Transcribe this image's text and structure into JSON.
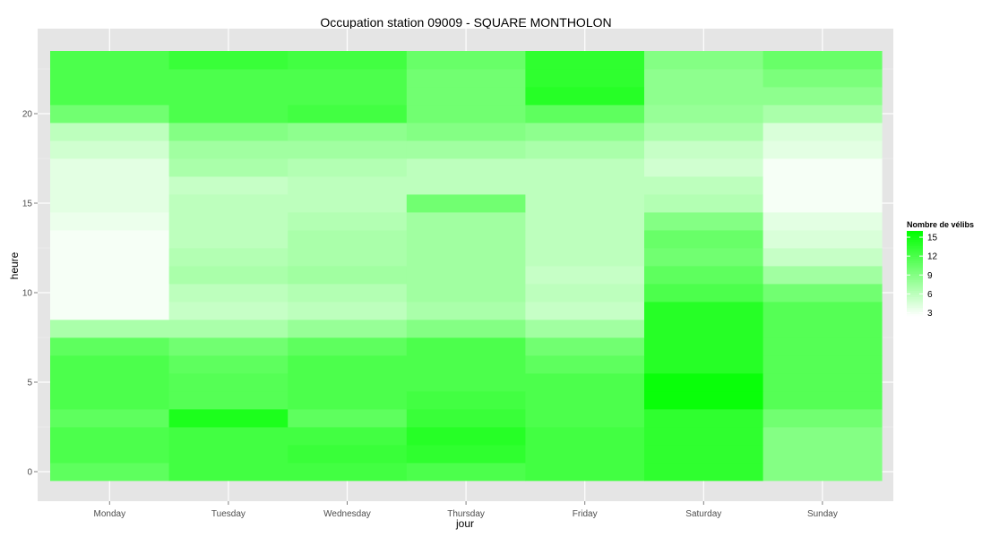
{
  "chart_data": {
    "type": "heatmap",
    "title": "Occupation station 09009 - SQUARE MONTHOLON",
    "xlabel": "jour",
    "ylabel": "heure",
    "x_categories": [
      "Monday",
      "Tuesday",
      "Wednesday",
      "Thursday",
      "Friday",
      "Saturday",
      "Sunday"
    ],
    "y_values": [
      0,
      1,
      2,
      3,
      4,
      5,
      6,
      7,
      8,
      9,
      10,
      11,
      12,
      13,
      14,
      15,
      16,
      17,
      18,
      19,
      20,
      21,
      22,
      23
    ],
    "y_ticks": [
      0,
      5,
      10,
      15,
      20
    ],
    "ylim": [
      -0.5,
      23.5
    ],
    "grid": true,
    "legend_title": "Nombre de vélibs",
    "legend_ticks": [
      3,
      6,
      9,
      12,
      15
    ],
    "legend_position": "right",
    "color_scale": {
      "low_color": "#ffffff",
      "high_color": "#00ff00",
      "min": 2.5,
      "max": 16
    },
    "values": [
      [
        11,
        12.5,
        12.5,
        12,
        12.5,
        13.5,
        9
      ],
      [
        12,
        12.5,
        13,
        13.5,
        12.5,
        13.5,
        9
      ],
      [
        12,
        12.5,
        12.5,
        14,
        12.5,
        13.5,
        9
      ],
      [
        11,
        14.5,
        11,
        13,
        12,
        13.5,
        10
      ],
      [
        12,
        11.5,
        12,
        12.5,
        12,
        15.5,
        11.5
      ],
      [
        12,
        11.5,
        12,
        12,
        12,
        15.5,
        11.5
      ],
      [
        12,
        11,
        12,
        12,
        11,
        14,
        11.5
      ],
      [
        11,
        10,
        11,
        12,
        10,
        14,
        11.5
      ],
      [
        7,
        7,
        8,
        9,
        7.5,
        14,
        11.5
      ],
      [
        3,
        5.5,
        6,
        7,
        5.5,
        14,
        11.5
      ],
      [
        3,
        6,
        6.5,
        7.5,
        6,
        12,
        10
      ],
      [
        3,
        7,
        7.5,
        7.5,
        5.5,
        11,
        7.5
      ],
      [
        3,
        6.5,
        7,
        7.5,
        6,
        10,
        5.5
      ],
      [
        3,
        6,
        7,
        7.5,
        6,
        10.5,
        4.5
      ],
      [
        3.5,
        6,
        6.5,
        7.5,
        6,
        9,
        4
      ],
      [
        4,
        6,
        6,
        10,
        6,
        6.5,
        3
      ],
      [
        4,
        5.5,
        6,
        6,
        6,
        6,
        3
      ],
      [
        4,
        7,
        6.5,
        6,
        6,
        5,
        3
      ],
      [
        5,
        7.5,
        7.5,
        7.5,
        7,
        5.5,
        4
      ],
      [
        6,
        9,
        8.5,
        9,
        8.5,
        7,
        4.5
      ],
      [
        10,
        12,
        12.5,
        10,
        11,
        8,
        7
      ],
      [
        12,
        12,
        12,
        10,
        14,
        8.5,
        8.5
      ],
      [
        12,
        12,
        12,
        10,
        13.5,
        8.5,
        9.5
      ],
      [
        12,
        13,
        12.5,
        10.5,
        13.5,
        9,
        10.5
      ]
    ]
  }
}
